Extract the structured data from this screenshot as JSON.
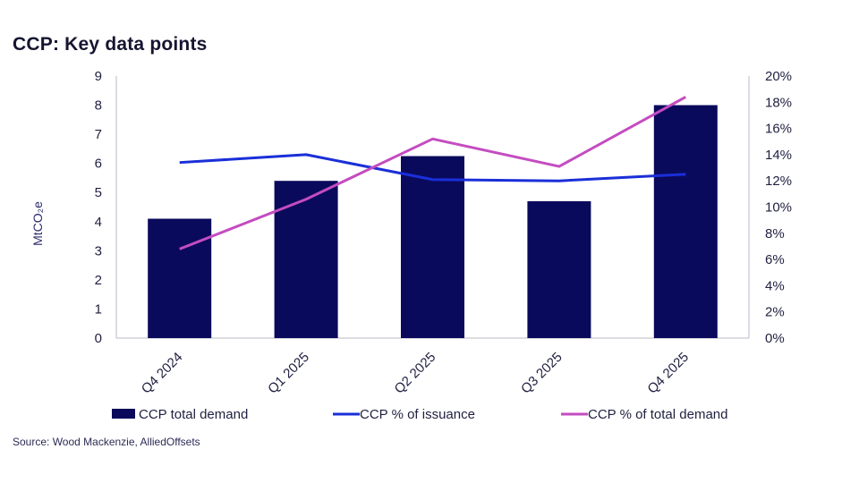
{
  "title": "CCP: Key data points",
  "source": "Source: Wood Mackenzie, AlliedOffsets",
  "colors": {
    "bar": "#0a0a5c",
    "issuance_line": "#1a2fd8",
    "demand_line": "#c44cc0",
    "axis": "#b8b8c4",
    "text": "#1f1f40"
  },
  "chart_data": {
    "type": "bar",
    "title": "CCP: Key data points",
    "categories": [
      "Q4 2024",
      "Q1 2025",
      "Q2 2025",
      "Q3 2025",
      "Q4 2025"
    ],
    "ylabel": "MtCO2e",
    "ylabel_display": "MtCO₂e",
    "ylim": [
      0,
      9
    ],
    "yticks": [
      "0",
      "1",
      "2",
      "3",
      "4",
      "5",
      "6",
      "7",
      "8",
      "9"
    ],
    "y2lim": [
      0,
      20
    ],
    "y2ticks": [
      "0%",
      "2%",
      "4%",
      "6%",
      "8%",
      "10%",
      "12%",
      "14%",
      "16%",
      "18%",
      "20%"
    ],
    "series": [
      {
        "name": "CCP total demand",
        "type": "bar",
        "axis": "left",
        "values": [
          4.1,
          5.4,
          6.25,
          4.7,
          8.0
        ]
      },
      {
        "name": "CCP % of issuance",
        "type": "line",
        "axis": "right",
        "values": [
          13.4,
          14.0,
          12.1,
          12.0,
          12.5
        ]
      },
      {
        "name": "CCP % of total demand",
        "type": "line",
        "axis": "right",
        "values": [
          6.8,
          10.6,
          15.2,
          13.1,
          18.4
        ]
      }
    ],
    "legend_position": "bottom"
  }
}
